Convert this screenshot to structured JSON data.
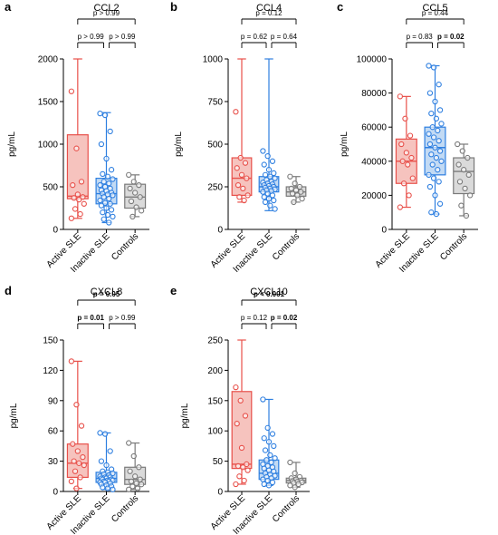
{
  "colors": {
    "active": "#E8504A",
    "active_fill": "#F4B9B3",
    "inactive": "#2E7FE0",
    "inactive_fill": "#B7D3F2",
    "controls": "#7A7A7A",
    "controls_fill": "#D4D4D4"
  },
  "chart_data": [
    {
      "type": "box",
      "panel": "a",
      "title": "CCL2",
      "ylabel": "pg/mL",
      "ylim": [
        0,
        2000
      ],
      "yticks": [
        0,
        500,
        1000,
        1500,
        2000
      ],
      "categories": [
        "Active SLE",
        "Inactive SLE",
        "Controls"
      ],
      "boxes": [
        {
          "min": 130,
          "q1": 360,
          "median": 390,
          "q3": 1110,
          "max": 2000
        },
        {
          "min": 80,
          "q1": 300,
          "median": 420,
          "q3": 600,
          "max": 1370
        },
        {
          "min": 150,
          "q1": 250,
          "median": 380,
          "q3": 530,
          "max": 640
        }
      ],
      "points": [
        [
          1620,
          950,
          560,
          520,
          410,
          380,
          370,
          350,
          300,
          240,
          180,
          130
        ],
        [
          1360,
          1340,
          1150,
          1000,
          830,
          700,
          650,
          620,
          590,
          560,
          540,
          520,
          500,
          480,
          460,
          450,
          430,
          420,
          410,
          400,
          380,
          360,
          340,
          310,
          300,
          280,
          250,
          230,
          200,
          170,
          150,
          120,
          80
        ],
        [
          640,
          560,
          520,
          480,
          430,
          380,
          330,
          260,
          220,
          150
        ]
      ],
      "comparisons": [
        {
          "label": "p > 0.99",
          "from": 0,
          "to": 2,
          "bold": false
        },
        {
          "label": "p > 0.99",
          "from": 0,
          "to": 1,
          "bold": false
        },
        {
          "label": "p > 0.99",
          "from": 1,
          "to": 2,
          "bold": false
        }
      ]
    },
    {
      "type": "box",
      "panel": "b",
      "title": "CCL4",
      "ylabel": "pg/mL",
      "ylim": [
        0,
        1000
      ],
      "yticks": [
        0,
        250,
        500,
        750,
        1000
      ],
      "categories": [
        "Active SLE",
        "Inactive SLE",
        "Controls"
      ],
      "boxes": [
        {
          "min": 160,
          "q1": 200,
          "median": 300,
          "q3": 420,
          "max": 1000
        },
        {
          "min": 110,
          "q1": 220,
          "median": 250,
          "q3": 310,
          "max": 1000
        },
        {
          "min": 160,
          "q1": 195,
          "median": 220,
          "q3": 250,
          "max": 310
        }
      ],
      "points": [
        [
          690,
          420,
          390,
          360,
          320,
          300,
          260,
          240,
          200,
          190,
          170
        ],
        [
          460,
          430,
          400,
          380,
          350,
          330,
          320,
          310,
          300,
          290,
          280,
          275,
          270,
          265,
          260,
          255,
          250,
          245,
          240,
          235,
          230,
          225,
          220,
          210,
          200,
          190,
          180,
          170,
          160,
          140,
          120
        ],
        [
          310,
          270,
          250,
          240,
          230,
          220,
          210,
          200,
          180,
          160
        ]
      ],
      "comparisons": [
        {
          "label": "p = 0.12",
          "from": 0,
          "to": 2,
          "bold": false
        },
        {
          "label": "p = 0.62",
          "from": 0,
          "to": 1,
          "bold": false
        },
        {
          "label": "p = 0.64",
          "from": 1,
          "to": 2,
          "bold": false
        }
      ]
    },
    {
      "type": "box",
      "panel": "c",
      "title": "CCL5",
      "ylabel": "pg/mL",
      "ylim": [
        0,
        100000
      ],
      "yticks": [
        0,
        20000,
        40000,
        60000,
        80000,
        100000
      ],
      "categories": [
        "Active SLE",
        "Inactive SLE",
        "Controls"
      ],
      "boxes": [
        {
          "min": 13000,
          "q1": 27000,
          "median": 40000,
          "q3": 53000,
          "max": 78000
        },
        {
          "min": 9000,
          "q1": 32000,
          "median": 48000,
          "q3": 60000,
          "max": 96000
        },
        {
          "min": 8000,
          "q1": 21000,
          "median": 34000,
          "q3": 42000,
          "max": 50000
        }
      ],
      "points": [
        [
          78000,
          65000,
          55000,
          50000,
          45000,
          42000,
          40000,
          38000,
          30000,
          27000,
          20000,
          13000
        ],
        [
          96000,
          95000,
          85000,
          80000,
          75000,
          70000,
          68000,
          65000,
          62000,
          60000,
          58000,
          56000,
          54000,
          52000,
          50000,
          48000,
          46000,
          44000,
          42000,
          40000,
          38000,
          35000,
          32000,
          30000,
          28000,
          25000,
          20000,
          15000,
          10000,
          9000
        ],
        [
          50000,
          46000,
          42000,
          38000,
          35000,
          32000,
          28000,
          24000,
          20000,
          14000,
          8000
        ]
      ],
      "comparisons": [
        {
          "label": "p = 0.44",
          "from": 0,
          "to": 2,
          "bold": false
        },
        {
          "label": "p = 0.83",
          "from": 0,
          "to": 1,
          "bold": false
        },
        {
          "label": "p = 0.02",
          "from": 1,
          "to": 2,
          "bold": true
        }
      ]
    },
    {
      "type": "box",
      "panel": "d",
      "title": "CXCL8",
      "ylabel": "pg/mL",
      "ylim": [
        0,
        150
      ],
      "yticks": [
        0,
        30,
        60,
        90,
        120,
        150
      ],
      "categories": [
        "Active SLE",
        "Inactive SLE",
        "Controls"
      ],
      "boxes": [
        {
          "min": 3,
          "q1": 14,
          "median": 28,
          "q3": 47,
          "max": 129
        },
        {
          "min": 2,
          "q1": 9,
          "median": 13,
          "q3": 19,
          "max": 58
        },
        {
          "min": 2,
          "q1": 7,
          "median": 12,
          "q3": 24,
          "max": 48
        }
      ],
      "points": [
        [
          129,
          86,
          65,
          47,
          40,
          34,
          30,
          28,
          26,
          20,
          14,
          10,
          3
        ],
        [
          58,
          57,
          40,
          30,
          26,
          22,
          20,
          19,
          18,
          17,
          16,
          15,
          14,
          14,
          13,
          13,
          12,
          12,
          11,
          11,
          10,
          10,
          9,
          9,
          8,
          7,
          6,
          5,
          4,
          3,
          2
        ],
        [
          48,
          35,
          24,
          20,
          15,
          12,
          10,
          8,
          7,
          5,
          3,
          2
        ]
      ],
      "comparisons": [
        {
          "label": "p = 0.05",
          "from": 0,
          "to": 2,
          "bold": true
        },
        {
          "label": "p = 0.01",
          "from": 0,
          "to": 1,
          "bold": true
        },
        {
          "label": "p > 0.99",
          "from": 1,
          "to": 2,
          "bold": false
        }
      ]
    },
    {
      "type": "box",
      "panel": "e",
      "title": "CXCL10",
      "ylabel": "pg/mL",
      "ylim": [
        0,
        250
      ],
      "yticks": [
        0,
        50,
        100,
        150,
        200,
        250
      ],
      "categories": [
        "Active SLE",
        "Inactive SLE",
        "Controls"
      ],
      "boxes": [
        {
          "min": 12,
          "q1": 38,
          "median": 45,
          "q3": 165,
          "max": 250
        },
        {
          "min": 10,
          "q1": 20,
          "median": 30,
          "q3": 52,
          "max": 152
        },
        {
          "min": 7,
          "q1": 14,
          "median": 18,
          "q3": 22,
          "max": 48
        }
      ],
      "points": [
        [
          172,
          150,
          125,
          112,
          72,
          45,
          42,
          40,
          35,
          25,
          18,
          12
        ],
        [
          152,
          105,
          95,
          88,
          82,
          75,
          68,
          60,
          55,
          52,
          48,
          45,
          42,
          40,
          38,
          35,
          33,
          30,
          28,
          26,
          24,
          22,
          20,
          18,
          15,
          12,
          10
        ],
        [
          48,
          30,
          24,
          22,
          20,
          18,
          17,
          16,
          15,
          14,
          12,
          10,
          7
        ]
      ],
      "comparisons": [
        {
          "label": "p < 0.001",
          "from": 0,
          "to": 2,
          "bold": true
        },
        {
          "label": "p = 0.12",
          "from": 0,
          "to": 1,
          "bold": false
        },
        {
          "label": "p = 0.02",
          "from": 1,
          "to": 2,
          "bold": true
        }
      ]
    }
  ]
}
